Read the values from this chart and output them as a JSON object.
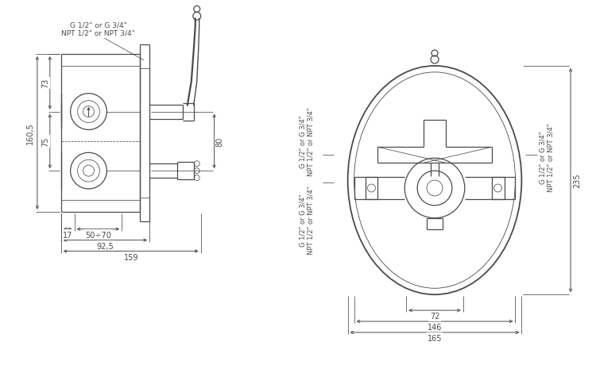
{
  "bg_color": "#ffffff",
  "line_color": "#4a4a4a",
  "dim_color": "#4a4a4a",
  "lw": 0.9,
  "tlw": 0.55,
  "fig_width": 7.5,
  "fig_height": 4.85,
  "left_view": {
    "label_top": "G 1/2\" or G 3/4\"\nNPT 1/2\" or NPT 3/4\"",
    "dim_73": "73",
    "dim_75": "75",
    "dim_160_5": "160,5",
    "dim_80": "80",
    "dim_17": "17",
    "dim_50_70": "50÷70",
    "dim_92_5": "92,5",
    "dim_159": "159"
  },
  "right_view": {
    "label_left_top": "G 1/2\" or G 3/4\"\nNPT 1/2\" or NPT 3/4\"",
    "label_left_bot": "G 1/2\" or G 3/4\"\nNPT 1/2\" or NPT 3/4\"",
    "label_right": "G 1/2\" or G 3/4\"\nNPT 1/2\" or NPT 3/4\"",
    "dim_235": "235",
    "dim_72": "72",
    "dim_146": "146",
    "dim_165": "165"
  }
}
